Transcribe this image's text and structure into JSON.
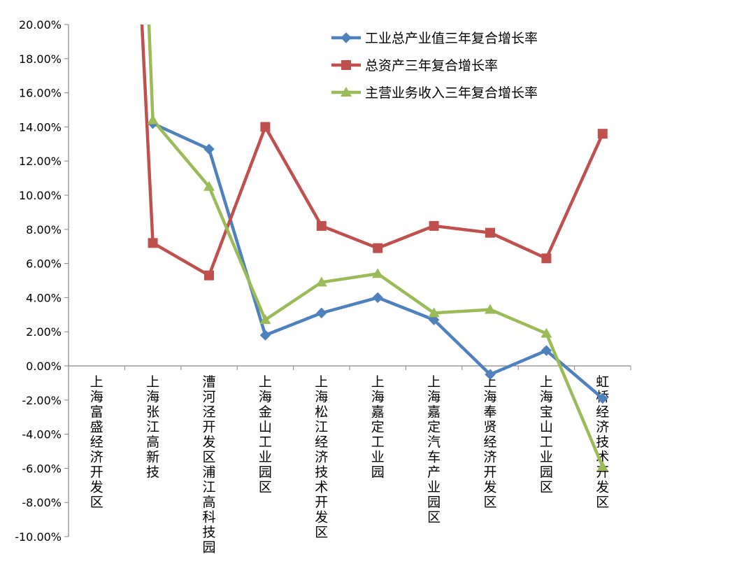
{
  "chart_data": {
    "type": "line",
    "title": "",
    "xlabel": "",
    "ylabel": "",
    "ylim": [
      -0.1,
      0.2
    ],
    "yticks": [
      "20.00%",
      "18.00%",
      "16.00%",
      "14.00%",
      "12.00%",
      "10.00%",
      "8.00%",
      "6.00%",
      "4.00%",
      "2.00%",
      "0.00%",
      "-2.00%",
      "-4.00%",
      "-6.00%",
      "-8.00%",
      "-10.00%"
    ],
    "categories": [
      "上海富盛经济开发区",
      "上海张江高新技",
      "漕河泾开发区浦江高科技园",
      "上海金山工业园区",
      "上海松江经济技术开发区",
      "上海嘉定工业园",
      "上海嘉定汽车产业园区",
      "上海奉贤经济开发区",
      "上海宝山工业园区",
      "虹桥经济技术开发区"
    ],
    "legend_position": "top-right",
    "grid": false,
    "series": [
      {
        "name": "工业总产业值三年复合增长率",
        "color": "#4F81BD",
        "marker": "diamond",
        "values": [
          null,
          0.142,
          0.127,
          0.018,
          0.031,
          0.04,
          0.027,
          -0.005,
          0.009,
          -0.019
        ]
      },
      {
        "name": "总资产三年复合增长率",
        "color": "#C0504D",
        "marker": "square",
        "values": [
          null,
          0.072,
          0.053,
          0.14,
          0.082,
          0.069,
          0.082,
          0.078,
          0.063,
          0.136
        ]
      },
      {
        "name": "主营业务收入三年复合增长率",
        "color": "#9BBB59",
        "marker": "triangle",
        "values": [
          null,
          0.144,
          0.105,
          0.027,
          0.049,
          0.054,
          0.031,
          0.033,
          0.019,
          -0.059
        ]
      }
    ]
  }
}
